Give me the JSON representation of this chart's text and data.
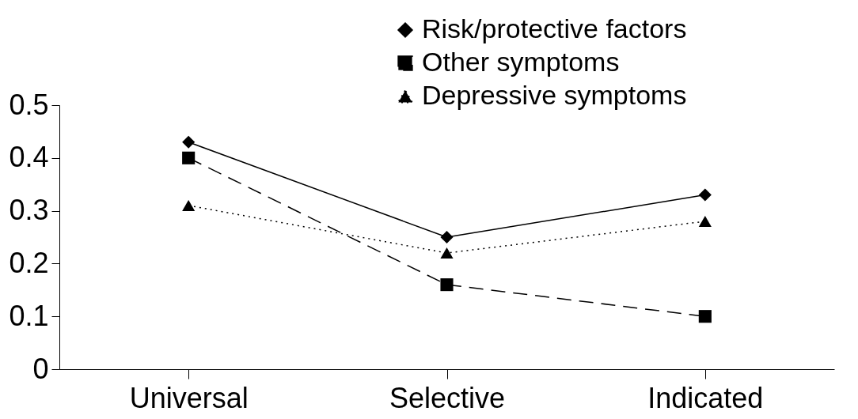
{
  "chart_data": {
    "type": "line",
    "categories": [
      "Universal",
      "Selective",
      "Indicated"
    ],
    "series": [
      {
        "name": "Risk/protective factors",
        "color": "#000000",
        "marker": "diamond",
        "line_style": "solid",
        "values": [
          0.43,
          0.25,
          0.33
        ]
      },
      {
        "name": "Other symptoms",
        "color": "#000000",
        "marker": "square",
        "line_style": "dashed",
        "values": [
          0.4,
          0.16,
          0.1
        ]
      },
      {
        "name": "Depressive symptoms",
        "color": "#000000",
        "marker": "triangle",
        "line_style": "dotted",
        "values": [
          0.31,
          0.22,
          0.28
        ]
      }
    ],
    "ylim": [
      0,
      0.5
    ],
    "yticks": [
      0,
      0.1,
      0.2,
      0.3,
      0.4,
      0.5
    ],
    "grid": false,
    "legend": "top right"
  }
}
